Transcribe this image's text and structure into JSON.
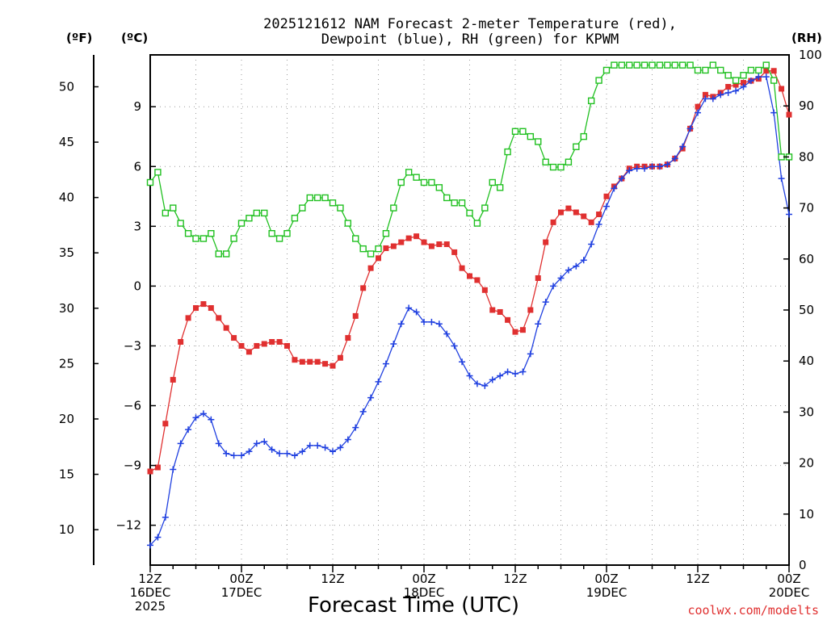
{
  "title_lines": [
    "2025121612 NAM Forecast 2-meter Temperature (red),",
    "Dewpoint (blue), RH (green) for KPWM"
  ],
  "credit": "coolwx.com/modelts",
  "chart_data": {
    "type": "line",
    "title": "2025121612 NAM Forecast 2-meter Temperature (red), Dewpoint (blue), RH (green) for KPWM",
    "xlabel": "Forecast Time (UTC)",
    "x_units": "forecast hour from 2025-12-16 12Z",
    "xlim": [
      0,
      84
    ],
    "x_ticks": [
      {
        "hour": 0,
        "lines": [
          "12Z",
          "16DEC",
          "2025"
        ]
      },
      {
        "hour": 12,
        "lines": [
          "00Z",
          "17DEC"
        ]
      },
      {
        "hour": 24,
        "lines": [
          "12Z"
        ]
      },
      {
        "hour": 36,
        "lines": [
          "00Z",
          "18DEC"
        ]
      },
      {
        "hour": 48,
        "lines": [
          "12Z"
        ]
      },
      {
        "hour": 60,
        "lines": [
          "00Z",
          "19DEC"
        ]
      },
      {
        "hour": 72,
        "lines": [
          "12Z"
        ]
      },
      {
        "hour": 84,
        "lines": [
          "00Z",
          "20DEC"
        ]
      }
    ],
    "y_left_c": {
      "unit": "(ºC)",
      "range": [
        -14,
        11.6
      ],
      "ticks": [
        -12,
        -9,
        -6,
        -3,
        0,
        3,
        6,
        9
      ],
      "tick_labels": [
        "−12",
        "−9",
        "−6",
        "−3",
        "0",
        "3",
        "6",
        "9"
      ]
    },
    "y_left_f": {
      "unit": "(ºF)",
      "ticks": [
        10,
        15,
        20,
        25,
        30,
        35,
        40,
        45,
        50
      ]
    },
    "y_right_rh": {
      "unit": "(RH)",
      "range": [
        0,
        100
      ],
      "ticks": [
        0,
        10,
        20,
        30,
        40,
        50,
        60,
        70,
        80,
        90,
        100
      ]
    },
    "grid": true,
    "x": [
      0,
      1,
      2,
      3,
      4,
      5,
      6,
      7,
      8,
      9,
      10,
      11,
      12,
      13,
      14,
      15,
      16,
      17,
      18,
      19,
      20,
      21,
      22,
      23,
      24,
      25,
      26,
      27,
      28,
      29,
      30,
      31,
      32,
      33,
      34,
      35,
      36,
      37,
      38,
      39,
      40,
      41,
      42,
      43,
      44,
      45,
      46,
      47,
      48,
      49,
      50,
      51,
      52,
      53,
      54,
      55,
      56,
      57,
      58,
      59,
      60,
      61,
      62,
      63,
      64,
      65,
      66,
      67,
      68,
      69,
      70,
      71,
      72,
      73,
      74,
      75,
      76,
      77,
      78,
      79,
      80,
      81,
      82,
      83,
      84
    ],
    "series": [
      {
        "color": "#e03030",
        "units": "°C",
        "marker": "filled-square",
        "values": [
          -9.3,
          -9.1,
          -6.9,
          -4.7,
          -2.8,
          -1.6,
          -1.1,
          -0.9,
          -1.1,
          -1.6,
          -2.1,
          -2.6,
          -3.0,
          -3.3,
          -3.0,
          -2.9,
          -2.8,
          -2.8,
          -3.0,
          -3.7,
          -3.8,
          -3.8,
          -3.8,
          -3.9,
          -4.0,
          -3.6,
          -2.6,
          -1.5,
          -0.1,
          0.9,
          1.4,
          1.9,
          2.0,
          2.2,
          2.4,
          2.5,
          2.2,
          2.0,
          2.1,
          2.1,
          1.7,
          0.9,
          0.5,
          0.3,
          -0.2,
          -1.2,
          -1.3,
          -1.7,
          -2.3,
          -2.2,
          -1.2,
          0.4,
          2.2,
          3.2,
          3.7,
          3.9,
          3.7,
          3.5,
          3.2,
          3.6,
          4.5,
          5.0,
          5.4,
          5.9,
          6.0,
          6.0,
          6.0,
          6.0,
          6.1,
          6.4,
          6.9,
          7.9,
          9.0,
          9.6,
          9.5,
          9.7,
          10.0,
          10.1,
          10.2,
          10.3,
          10.4,
          10.8,
          10.8,
          9.9,
          8.6
        ]
      },
      {
        "color": "#2040e0",
        "units": "°C",
        "marker": "plus",
        "values": [
          -13.0,
          -12.6,
          -11.6,
          -9.2,
          -7.9,
          -7.2,
          -6.6,
          -6.4,
          -6.7,
          -7.9,
          -8.4,
          -8.5,
          -8.5,
          -8.3,
          -7.9,
          -7.8,
          -8.2,
          -8.4,
          -8.4,
          -8.5,
          -8.3,
          -8.0,
          -8.0,
          -8.1,
          -8.3,
          -8.1,
          -7.7,
          -7.1,
          -6.3,
          -5.6,
          -4.8,
          -3.9,
          -2.9,
          -1.9,
          -1.1,
          -1.3,
          -1.8,
          -1.8,
          -1.9,
          -2.4,
          -3.0,
          -3.8,
          -4.5,
          -4.9,
          -5.0,
          -4.7,
          -4.5,
          -4.3,
          -4.4,
          -4.3,
          -3.4,
          -1.9,
          -0.8,
          0.0,
          0.4,
          0.8,
          1.0,
          1.3,
          2.1,
          3.1,
          4.0,
          4.9,
          5.4,
          5.8,
          5.9,
          5.9,
          6.0,
          6.0,
          6.1,
          6.4,
          7.0,
          7.9,
          8.7,
          9.4,
          9.4,
          9.6,
          9.7,
          9.8,
          10.0,
          10.3,
          10.5,
          10.5,
          8.7,
          5.4,
          3.6
        ]
      },
      {
        "color": "#20c020",
        "units": "%",
        "marker": "open-square",
        "values": [
          75,
          77,
          69,
          70,
          67,
          65,
          64,
          64,
          65,
          61,
          61,
          64,
          67,
          68,
          69,
          69,
          65,
          64,
          65,
          68,
          70,
          72,
          72,
          72,
          71,
          70,
          67,
          64,
          62,
          61,
          62,
          65,
          70,
          75,
          77,
          76,
          75,
          75,
          74,
          72,
          71,
          71,
          69,
          67,
          70,
          75,
          74,
          81,
          85,
          85,
          84,
          83,
          79,
          78,
          78,
          79,
          82,
          84,
          91,
          95,
          97,
          98,
          98,
          98,
          98,
          98,
          98,
          98,
          98,
          98,
          98,
          98,
          97,
          97,
          98,
          97,
          96,
          95,
          96,
          97,
          97,
          98,
          95,
          80,
          80
        ]
      }
    ]
  }
}
